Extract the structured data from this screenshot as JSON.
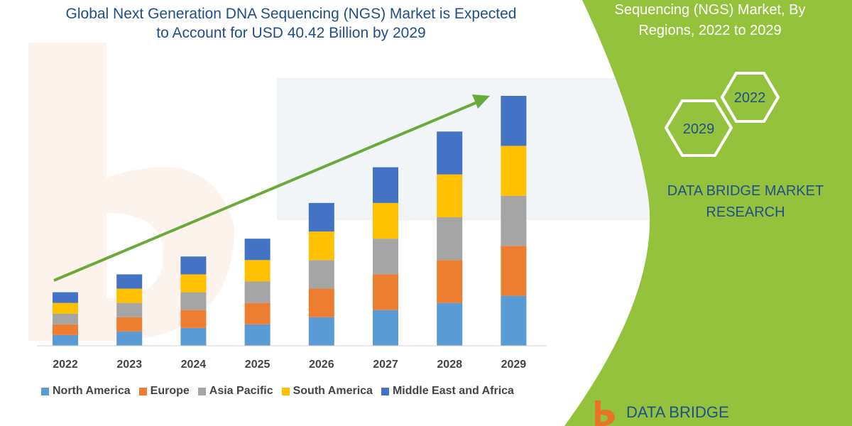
{
  "header": {
    "title_line1": "Global Next Generation DNA Sequencing (NGS) Market is Expected",
    "title_line2": "to Account for USD 40.42 Billion by 2029"
  },
  "side_panel": {
    "title_line1": "Sequencing (NGS) Market, By",
    "title_line2": "Regions, 2022 to 2029",
    "hex_2022": "2022",
    "hex_2029": "2029",
    "brand_line1": "DATA BRIDGE MARKET",
    "brand_line2": "RESEARCH",
    "logo_text": "DATA BRIDGE"
  },
  "colors": {
    "panel_green": "#95c23d",
    "trend_arrow": "#6aaa3a",
    "text_blue": "#1f4e8c"
  },
  "chart_data": {
    "type": "bar",
    "stacked": true,
    "categories": [
      "2022",
      "2023",
      "2024",
      "2025",
      "2026",
      "2027",
      "2028",
      "2029"
    ],
    "series": [
      {
        "name": "North America",
        "color": "#5b9bd5",
        "values": [
          3.0,
          4.0,
          5.0,
          6.0,
          8.0,
          10.0,
          12.0,
          14.0
        ]
      },
      {
        "name": "Europe",
        "color": "#ed7d31",
        "values": [
          3.0,
          4.0,
          5.0,
          6.0,
          8.0,
          10.0,
          12.0,
          14.0
        ]
      },
      {
        "name": "Asia Pacific",
        "color": "#a5a5a5",
        "values": [
          3.0,
          4.0,
          5.0,
          6.0,
          8.0,
          10.0,
          12.0,
          14.0
        ]
      },
      {
        "name": "South America",
        "color": "#ffc000",
        "values": [
          3.0,
          4.0,
          5.0,
          6.0,
          8.0,
          10.0,
          12.0,
          14.0
        ]
      },
      {
        "name": "Middle East and Africa",
        "color": "#4472c4",
        "values": [
          3.0,
          4.0,
          5.0,
          6.0,
          8.0,
          10.0,
          12.0,
          14.0
        ]
      }
    ],
    "ylim": [
      0,
      70
    ],
    "y_axis_visible": false,
    "grid": false,
    "legend_position": "bottom",
    "trend_arrow": true
  }
}
